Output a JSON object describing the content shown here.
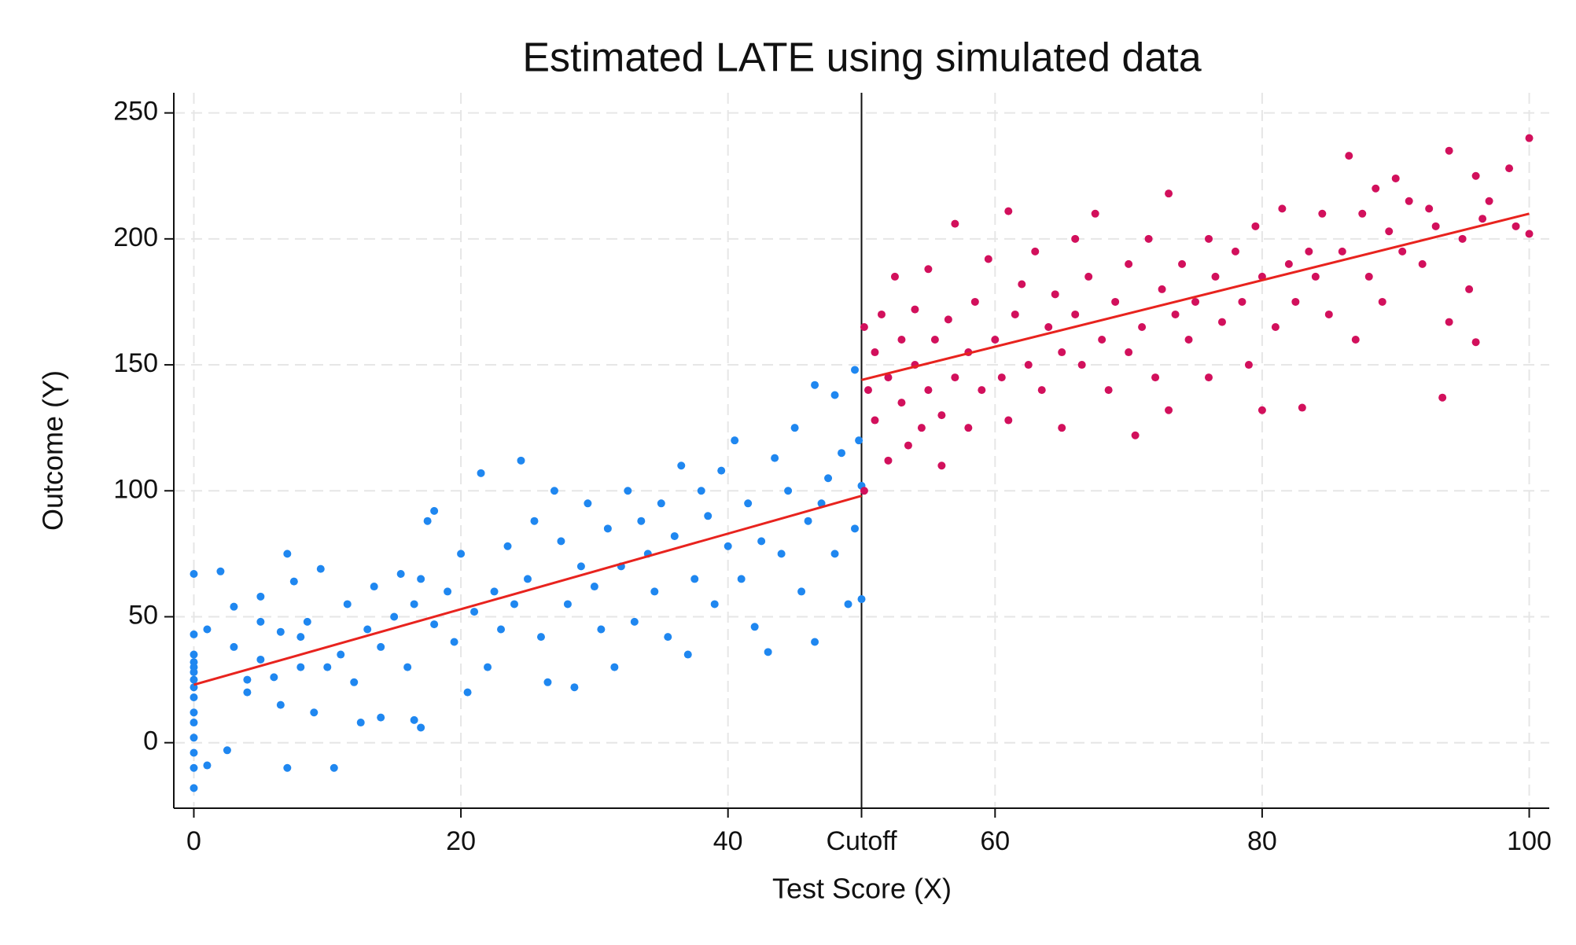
{
  "chart_data": {
    "type": "scatter",
    "title": "Estimated LATE using simulated data",
    "x_label": "Test Score (X)",
    "y_label": "Outcome (Y)",
    "xlim": [
      -1.5,
      101.5
    ],
    "ylim": [
      -26,
      258
    ],
    "xticks": [
      0,
      20,
      40,
      {
        "value": 50,
        "label": "Cutoff"
      },
      60,
      80,
      100
    ],
    "yticks": [
      0,
      50,
      100,
      150,
      200,
      250
    ],
    "grid": true,
    "series": [
      {
        "type": "scatter",
        "color": "#1f87f0",
        "x": [
          0,
          0,
          0,
          0,
          0,
          0,
          0,
          0,
          0,
          0,
          0,
          0,
          0,
          0,
          0,
          1,
          1,
          2,
          2.5,
          3,
          3,
          4,
          4,
          5,
          5,
          5,
          6,
          6.5,
          6.5,
          7,
          7,
          7.5,
          8,
          8,
          8.5,
          9,
          9.5,
          10,
          10.5,
          11,
          11.5,
          12,
          12.5,
          13,
          13.5,
          14,
          14,
          15,
          15.5,
          16,
          16.5,
          16.5,
          17,
          17,
          17.5,
          18,
          18,
          19,
          19.5,
          20,
          20.5,
          21,
          21.5,
          22,
          22.5,
          23,
          23.5,
          24,
          24.5,
          25,
          25.5,
          26,
          26.5,
          27,
          27.5,
          28,
          28.5,
          29,
          29.5,
          30,
          30.5,
          31,
          31.5,
          32,
          32.5,
          33,
          33.5,
          34,
          34.5,
          35,
          35.5,
          36,
          36.5,
          37,
          37.5,
          38,
          38.5,
          39,
          39.5,
          40,
          40.5,
          41,
          41.5,
          42,
          42.5,
          43,
          43.5,
          44,
          44.5,
          45,
          45.5,
          46,
          46.5,
          46.5,
          47,
          47.5,
          48,
          48,
          48.5,
          49,
          49.5,
          49.5,
          50,
          50,
          49.8
        ],
        "y": [
          67,
          43,
          35,
          32,
          30,
          28,
          25,
          22,
          18,
          12,
          8,
          2,
          -4,
          -10,
          -18,
          45,
          -9,
          68,
          -3,
          54,
          38,
          25,
          20,
          58,
          48,
          33,
          26,
          44,
          15,
          75,
          -10,
          64,
          42,
          30,
          48,
          12,
          69,
          30,
          -10,
          35,
          55,
          24,
          8,
          45,
          62,
          38,
          10,
          50,
          67,
          30,
          55,
          9,
          65,
          6,
          88,
          92,
          47,
          60,
          40,
          75,
          20,
          52,
          107,
          30,
          60,
          45,
          78,
          55,
          112,
          65,
          88,
          42,
          24,
          100,
          80,
          55,
          22,
          70,
          95,
          62,
          45,
          85,
          30,
          70,
          100,
          48,
          88,
          75,
          60,
          95,
          42,
          82,
          110,
          35,
          65,
          100,
          90,
          55,
          108,
          78,
          120,
          65,
          95,
          46,
          80,
          36,
          113,
          75,
          100,
          125,
          60,
          88,
          142,
          40,
          95,
          105,
          138,
          75,
          115,
          55,
          85,
          148,
          57,
          102,
          120
        ]
      },
      {
        "type": "scatter",
        "color": "#d2105c",
        "x": [
          50.2,
          50.2,
          50.5,
          51,
          51,
          51.5,
          52,
          52,
          52.5,
          53,
          53,
          53.5,
          54,
          54,
          54.5,
          55,
          55,
          55.5,
          56,
          56,
          56.5,
          57,
          57,
          58,
          58,
          58.5,
          59,
          59.5,
          60,
          60.5,
          61,
          61,
          61.5,
          62,
          62.5,
          63,
          63.5,
          64,
          64.5,
          65,
          65,
          66,
          66,
          66.5,
          67,
          67.5,
          68,
          68.5,
          69,
          70,
          70,
          70.5,
          71,
          71.5,
          72,
          72.5,
          73,
          73,
          73.5,
          74,
          74.5,
          75,
          76,
          76,
          76.5,
          77,
          78,
          78.5,
          79,
          79.5,
          80,
          80,
          81,
          81.5,
          82,
          82.5,
          83,
          83.5,
          84,
          84.5,
          85,
          86,
          86.5,
          87,
          87.5,
          88,
          88.5,
          89,
          89.5,
          90,
          90.5,
          91,
          92,
          92.5,
          93,
          93.5,
          94,
          94,
          95,
          95.5,
          96,
          96,
          96.5,
          97,
          98.5,
          99,
          100,
          100
        ],
        "y": [
          165,
          100,
          140,
          128,
          155,
          170,
          112,
          145,
          185,
          135,
          160,
          118,
          150,
          172,
          125,
          188,
          140,
          160,
          110,
          130,
          168,
          145,
          206,
          125,
          155,
          175,
          140,
          192,
          160,
          145,
          211,
          128,
          170,
          182,
          150,
          195,
          140,
          165,
          178,
          125,
          155,
          200,
          170,
          150,
          185,
          210,
          160,
          140,
          175,
          190,
          155,
          122,
          165,
          200,
          145,
          180,
          218,
          132,
          170,
          190,
          160,
          175,
          200,
          145,
          185,
          167,
          195,
          175,
          150,
          205,
          132,
          185,
          165,
          212,
          190,
          175,
          133,
          195,
          185,
          210,
          170,
          195,
          233,
          160,
          210,
          185,
          220,
          175,
          203,
          224,
          195,
          215,
          190,
          212,
          205,
          137,
          167,
          235,
          200,
          180,
          159,
          225,
          208,
          215,
          228,
          205,
          240,
          202
        ]
      },
      {
        "type": "line",
        "color": "#e8231e",
        "x": [
          0,
          50
        ],
        "y": [
          23,
          98
        ]
      },
      {
        "type": "line",
        "color": "#e8231e",
        "x": [
          50,
          100
        ],
        "y": [
          144,
          210
        ]
      }
    ]
  }
}
